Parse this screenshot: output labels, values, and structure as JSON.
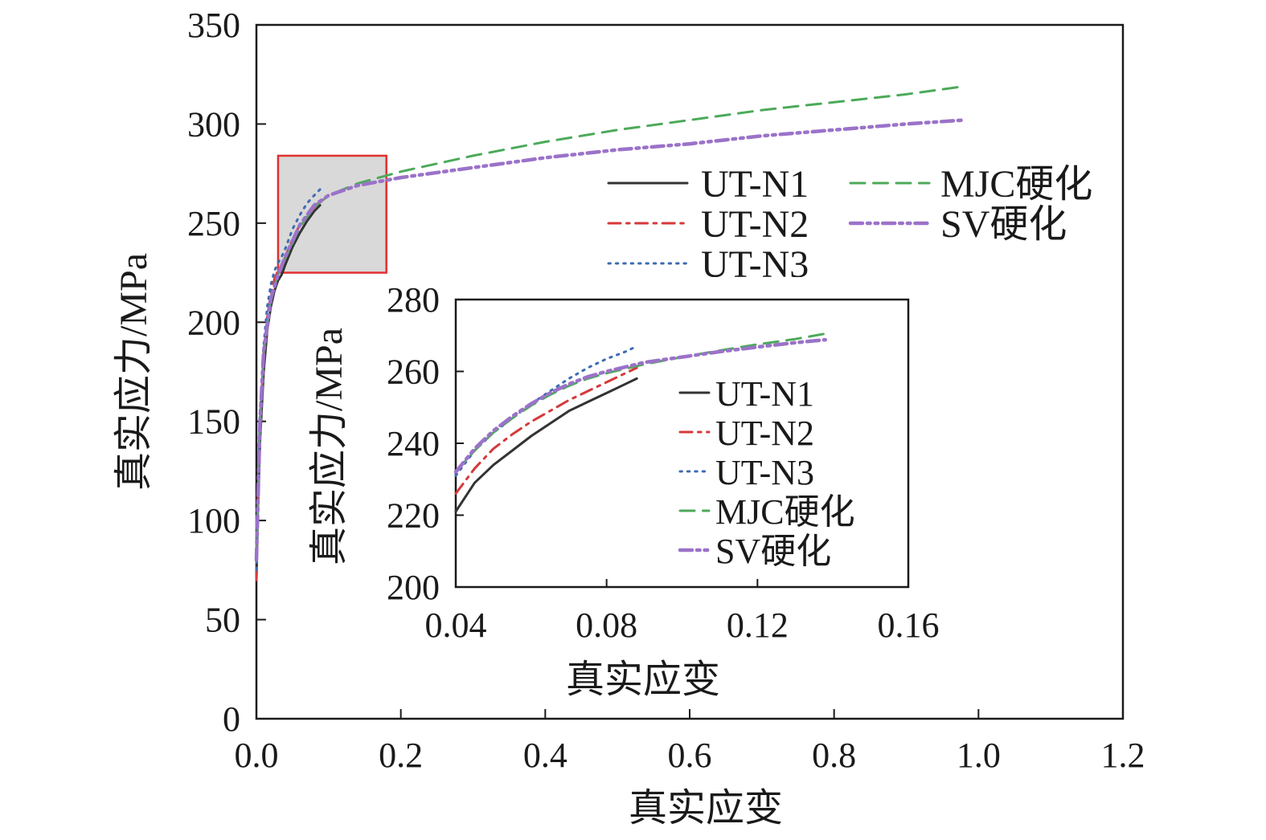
{
  "chart_data": [
    {
      "type": "line",
      "xlabel": "真实应变",
      "ylabel": "真实应力/MPa",
      "xlim": [
        0.0,
        1.2
      ],
      "ylim": [
        0,
        350
      ],
      "xticks": [
        "0.0",
        "0.2",
        "0.4",
        "0.6",
        "0.8",
        "1.0",
        "1.2"
      ],
      "yticks": [
        "0",
        "50",
        "100",
        "150",
        "200",
        "250",
        "300",
        "350"
      ],
      "grid": false,
      "legend_position": "top-right",
      "zoom_box": {
        "x": [
          0.03,
          0.18
        ],
        "y": [
          225,
          284
        ]
      },
      "series": [
        {
          "name": "UT-N1",
          "style": "solid",
          "color": "#333333",
          "x": [
            0.0,
            0.002,
            0.005,
            0.01,
            0.015,
            0.02,
            0.025,
            0.03,
            0.035,
            0.04,
            0.05,
            0.06,
            0.07,
            0.08,
            0.088
          ],
          "y": [
            70,
            105,
            140,
            175,
            196,
            208,
            216,
            221,
            224,
            229,
            238,
            245,
            251,
            256,
            259
          ]
        },
        {
          "name": "UT-N2",
          "style": "dashdot",
          "color": "#d6393a",
          "x": [
            0.0,
            0.002,
            0.005,
            0.01,
            0.015,
            0.02,
            0.025,
            0.03,
            0.035,
            0.04,
            0.05,
            0.06,
            0.07,
            0.08,
            0.088
          ],
          "y": [
            70,
            110,
            148,
            182,
            203,
            214,
            222,
            226,
            228,
            233,
            242,
            249,
            254,
            258,
            261
          ]
        },
        {
          "name": "UT-N3",
          "style": "dotted",
          "color": "#3d6bb3",
          "x": [
            0.0,
            0.002,
            0.005,
            0.01,
            0.015,
            0.02,
            0.025,
            0.03,
            0.035,
            0.04,
            0.05,
            0.06,
            0.07,
            0.08,
            0.088
          ],
          "y": [
            75,
            115,
            155,
            188,
            208,
            219,
            226,
            230,
            233,
            237,
            247,
            254,
            260,
            264,
            267
          ]
        },
        {
          "name": "MJC硬化",
          "style": "dashed",
          "color": "#4caa5a",
          "x": [
            0.0,
            0.005,
            0.01,
            0.02,
            0.03,
            0.04,
            0.06,
            0.08,
            0.1,
            0.14,
            0.2,
            0.3,
            0.4,
            0.5,
            0.6,
            0.7,
            0.8,
            0.9,
            0.98
          ],
          "y": [
            80,
            150,
            185,
            212,
            224,
            232,
            248,
            258,
            264,
            270,
            276,
            284,
            291,
            297,
            302,
            307,
            311,
            315,
            319
          ]
        },
        {
          "name": "SV硬化",
          "style": "dashdotdot",
          "color": "#9b72c9",
          "x": [
            0.0,
            0.005,
            0.01,
            0.02,
            0.03,
            0.04,
            0.06,
            0.08,
            0.1,
            0.14,
            0.2,
            0.3,
            0.4,
            0.5,
            0.6,
            0.7,
            0.8,
            0.9,
            0.98
          ],
          "y": [
            80,
            150,
            185,
            212,
            224,
            233,
            249,
            259,
            264,
            269,
            273,
            278,
            283,
            287,
            290,
            294,
            297,
            300,
            302
          ]
        }
      ]
    },
    {
      "type": "line",
      "inset": true,
      "xlabel": "真实应变",
      "ylabel": "真实应力/MPa",
      "xlim": [
        0.04,
        0.16
      ],
      "ylim": [
        200,
        280
      ],
      "xticks": [
        "0.04",
        "0.08",
        "0.12",
        "0.16"
      ],
      "yticks": [
        "200",
        "220",
        "240",
        "260",
        "280"
      ],
      "grid": false,
      "legend_position": "right",
      "series_ref": [
        "UT-N1",
        "UT-N2",
        "UT-N3",
        "MJC硬化",
        "SV硬化"
      ],
      "series": [
        {
          "name": "UT-N1",
          "style": "solid",
          "color": "#333333",
          "x": [
            0.04,
            0.045,
            0.05,
            0.055,
            0.06,
            0.065,
            0.07,
            0.075,
            0.08,
            0.085,
            0.088
          ],
          "y": [
            221,
            229,
            234,
            238,
            242,
            245.5,
            249,
            251.5,
            254,
            256.5,
            258
          ]
        },
        {
          "name": "UT-N2",
          "style": "dashdot",
          "color": "#d6393a",
          "x": [
            0.04,
            0.045,
            0.05,
            0.055,
            0.06,
            0.065,
            0.07,
            0.075,
            0.08,
            0.085,
            0.088
          ],
          "y": [
            226,
            233,
            238.5,
            242.5,
            246,
            249,
            252,
            254.5,
            257,
            259.5,
            261
          ]
        },
        {
          "name": "UT-N3",
          "style": "dotted",
          "color": "#3d6bb3",
          "x": [
            0.04,
            0.045,
            0.05,
            0.055,
            0.06,
            0.065,
            0.07,
            0.075,
            0.08,
            0.085,
            0.088
          ],
          "y": [
            231,
            238,
            243,
            247,
            251,
            254.5,
            258,
            261,
            263.5,
            265.5,
            267
          ]
        },
        {
          "name": "MJC硬化",
          "style": "dashed",
          "color": "#4caa5a",
          "x": [
            0.04,
            0.045,
            0.05,
            0.055,
            0.06,
            0.065,
            0.07,
            0.075,
            0.08,
            0.09,
            0.1,
            0.11,
            0.12,
            0.13,
            0.138
          ],
          "y": [
            232,
            238,
            243,
            247,
            250.5,
            253.5,
            256,
            258,
            259.5,
            262,
            264,
            265.8,
            267.5,
            269,
            270.5
          ]
        },
        {
          "name": "SV硬化",
          "style": "dashdotdot",
          "color": "#9b72c9",
          "x": [
            0.04,
            0.045,
            0.05,
            0.055,
            0.06,
            0.065,
            0.07,
            0.075,
            0.08,
            0.09,
            0.1,
            0.11,
            0.12,
            0.13,
            0.138
          ],
          "y": [
            232,
            238.5,
            243.5,
            247.5,
            251,
            254,
            256.5,
            258.5,
            260,
            262.5,
            264,
            265.5,
            266.8,
            268,
            268.8
          ]
        }
      ]
    }
  ]
}
